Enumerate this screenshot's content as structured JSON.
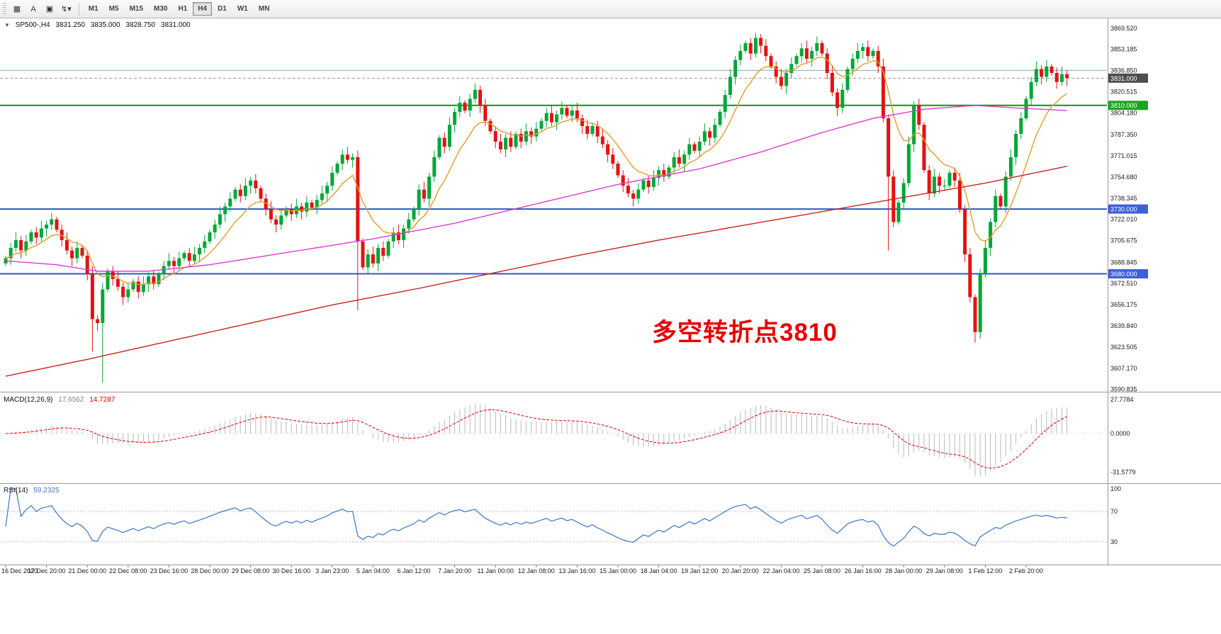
{
  "toolbar": {
    "icon_buttons": [
      {
        "name": "new-chart-icon",
        "glyph": "▦"
      },
      {
        "name": "text-label-tool-icon",
        "glyph": "A"
      },
      {
        "name": "chart-window-icon",
        "glyph": "▣"
      },
      {
        "name": "indicators-dropdown-icon",
        "glyph": "↯▾"
      }
    ],
    "timeframes": [
      {
        "label": "M1",
        "selected": false
      },
      {
        "label": "M5",
        "selected": false
      },
      {
        "label": "M15",
        "selected": false
      },
      {
        "label": "M30",
        "selected": false
      },
      {
        "label": "H1",
        "selected": false
      },
      {
        "label": "H4",
        "selected": true
      },
      {
        "label": "D1",
        "selected": false
      },
      {
        "label": "W1",
        "selected": false
      },
      {
        "label": "MN",
        "selected": false
      }
    ]
  },
  "header": {
    "one_click_glyph": "▼",
    "symbol": "SP500-,H4",
    "open": "3831.250",
    "high": "3835.000",
    "low": "3828.750",
    "close": "3831.000"
  },
  "annotation": {
    "text": "多空转折点3810",
    "color": "#e60000"
  },
  "chart_data": {
    "type": "candlestick",
    "symbol": "SP500",
    "timeframe": "H4",
    "ohlc_header": {
      "open": 3831.25,
      "high": 3835.0,
      "low": 3828.75,
      "close": 3831.0
    },
    "first_open": 3688,
    "closes": [
      3692,
      3700,
      3706,
      3698,
      3705,
      3712,
      3708,
      3715,
      3718,
      3722,
      3714,
      3706,
      3698,
      3692,
      3700,
      3694,
      3680,
      3645,
      3642,
      3668,
      3682,
      3676,
      3670,
      3662,
      3668,
      3674,
      3666,
      3672,
      3678,
      3672,
      3680,
      3686,
      3690,
      3686,
      3692,
      3696,
      3690,
      3695,
      3700,
      3705,
      3712,
      3718,
      3726,
      3732,
      3738,
      3745,
      3740,
      3748,
      3752,
      3746,
      3738,
      3730,
      3722,
      3718,
      3725,
      3730,
      3726,
      3732,
      3728,
      3735,
      3731,
      3737,
      3742,
      3748,
      3758,
      3765,
      3772,
      3768,
      3770,
      3705,
      3685,
      3695,
      3688,
      3700,
      3694,
      3705,
      3712,
      3706,
      3715,
      3722,
      3730,
      3745,
      3738,
      3755,
      3770,
      3785,
      3778,
      3795,
      3805,
      3812,
      3806,
      3815,
      3822,
      3810,
      3798,
      3790,
      3782,
      3776,
      3785,
      3778,
      3788,
      3782,
      3790,
      3786,
      3792,
      3798,
      3804,
      3797,
      3803,
      3808,
      3802,
      3806,
      3800,
      3794,
      3788,
      3794,
      3786,
      3780,
      3772,
      3765,
      3756,
      3748,
      3742,
      3738,
      3745,
      3752,
      3747,
      3754,
      3760,
      3755,
      3762,
      3770,
      3765,
      3772,
      3780,
      3775,
      3782,
      3790,
      3785,
      3795,
      3805,
      3818,
      3832,
      3845,
      3852,
      3858,
      3850,
      3862,
      3856,
      3848,
      3840,
      3832,
      3825,
      3835,
      3842,
      3848,
      3854,
      3846,
      3852,
      3858,
      3850,
      3835,
      3820,
      3808,
      3822,
      3838,
      3846,
      3852,
      3855,
      3848,
      3852,
      3840,
      3800,
      3755,
      3720,
      3735,
      3750,
      3780,
      3810,
      3795,
      3760,
      3742,
      3755,
      3748,
      3748,
      3758,
      3752,
      3730,
      3695,
      3662,
      3635,
      3680,
      3700,
      3720,
      3740,
      3732,
      3755,
      3770,
      3788,
      3800,
      3815,
      3828,
      3838,
      3832,
      3840,
      3835,
      3828,
      3834,
      3831
    ],
    "wick_overrides": {
      "17": {
        "low": 3620
      },
      "19": {
        "low": 3596
      },
      "69": {
        "low": 3652
      },
      "92": {
        "high": 3827
      },
      "147": {
        "high": 3866
      },
      "173": {
        "low": 3698
      },
      "190": {
        "low": 3627
      }
    },
    "x_labels": [
      {
        "text": "16 Dec 2020",
        "i": 0
      },
      {
        "text": "17 Dec 20:00",
        "i": 8
      },
      {
        "text": "21 Dec 00:00",
        "i": 16
      },
      {
        "text": "22 Dec 08:00",
        "i": 24
      },
      {
        "text": "23 Dec 16:00",
        "i": 32
      },
      {
        "text": "28 Dec 00:00",
        "i": 40
      },
      {
        "text": "29 Dec 08:00",
        "i": 48
      },
      {
        "text": "30 Dec 16:00",
        "i": 56
      },
      {
        "text": "3 Jan 23:00",
        "i": 64
      },
      {
        "text": "5 Jan 04:00",
        "i": 72
      },
      {
        "text": "6 Jan 12:00",
        "i": 80
      },
      {
        "text": "7 Jan 20:00",
        "i": 88
      },
      {
        "text": "11 Jan 00:00",
        "i": 96
      },
      {
        "text": "12 Jan 08:00",
        "i": 104
      },
      {
        "text": "13 Jan 16:00",
        "i": 112
      },
      {
        "text": "15 Jan 00:00",
        "i": 120
      },
      {
        "text": "18 Jan 04:00",
        "i": 128
      },
      {
        "text": "19 Jan 12:00",
        "i": 136
      },
      {
        "text": "20 Jan 20:00",
        "i": 144
      },
      {
        "text": "22 Jan 04:00",
        "i": 152
      },
      {
        "text": "25 Jan 08:00",
        "i": 160
      },
      {
        "text": "26 Jan 16:00",
        "i": 168
      },
      {
        "text": "28 Jan 00:00",
        "i": 176
      },
      {
        "text": "29 Jan 08:00",
        "i": 184
      },
      {
        "text": "1 Feb 12:00",
        "i": 192
      },
      {
        "text": "2 Feb 20:00",
        "i": 200
      }
    ],
    "price_scale": {
      "ticks": [
        "3869.520",
        "3853.185",
        "3836.850",
        "3820.515",
        "3804.180",
        "3787.350",
        "3771.015",
        "3754.680",
        "3738.345",
        "3722.010",
        "3705.675",
        "3688.845",
        "3672.510",
        "3656.175",
        "3639.840",
        "3623.505",
        "3607.170",
        "3590.835"
      ],
      "markers": [
        {
          "label": "3831.000",
          "value": 3831.0,
          "bg": "#4d4d4d"
        },
        {
          "label": "3810.000",
          "value": 3810.0,
          "bg": "#1fa31f"
        },
        {
          "label": "3730.000",
          "value": 3730.0,
          "bg": "#3e5fd7"
        },
        {
          "label": "3680.000",
          "value": 3680.0,
          "bg": "#3e5fd7"
        }
      ]
    },
    "hlines": [
      {
        "price": 3837.0,
        "color": "#85a8cc",
        "w": 1
      },
      {
        "price": 3831.0,
        "color": "#9a9a9a",
        "w": 1,
        "dash": "4 3"
      },
      {
        "price": 3810.0,
        "color": "#0a9a0a",
        "w": 2
      },
      {
        "price": 3730.0,
        "color": "#2f55cc",
        "w": 2
      },
      {
        "price": 3680.0,
        "color": "#2f55cc",
        "w": 2
      }
    ],
    "levels": {
      "turning_point": 3810,
      "support_1": 3730,
      "support_2": 3680
    },
    "moving_averages": {
      "orange_ema_period": 10,
      "magenta_waypoints": [
        [
          0,
          3690
        ],
        [
          10,
          3687
        ],
        [
          18,
          3682
        ],
        [
          28,
          3682
        ],
        [
          40,
          3687
        ],
        [
          56,
          3697
        ],
        [
          72,
          3707
        ],
        [
          88,
          3719
        ],
        [
          104,
          3734
        ],
        [
          120,
          3749
        ],
        [
          136,
          3761
        ],
        [
          148,
          3774
        ],
        [
          160,
          3789
        ],
        [
          170,
          3800
        ],
        [
          180,
          3807
        ],
        [
          190,
          3810
        ],
        [
          198,
          3808
        ],
        [
          208,
          3806
        ]
      ],
      "red_waypoints": [
        [
          0,
          3601
        ],
        [
          16,
          3614
        ],
        [
          32,
          3628
        ],
        [
          48,
          3642
        ],
        [
          64,
          3656
        ],
        [
          80,
          3668
        ],
        [
          96,
          3681
        ],
        [
          112,
          3694
        ],
        [
          128,
          3706
        ],
        [
          144,
          3717
        ],
        [
          160,
          3728
        ],
        [
          176,
          3739
        ],
        [
          192,
          3750
        ],
        [
          208,
          3763
        ]
      ]
    },
    "indicators": {
      "macd": {
        "label": "MACD(12,26,9)",
        "value_main": "17.6562",
        "value_signal": "14.7287",
        "fast": 12,
        "slow": 26,
        "signal": 9,
        "axis": [
          {
            "label": "27.7784",
            "v": 27.7784
          },
          {
            "label": "0.0000",
            "v": 0
          },
          {
            "label": "-31.5779",
            "v": -31.5779
          }
        ]
      },
      "rsi": {
        "label": "RSI(14)",
        "value": "59.2325",
        "period": 14,
        "levels": [
          100,
          70,
          30
        ],
        "dashed_levels": [
          70,
          30
        ]
      }
    },
    "colors": {
      "up": "#00a736",
      "down": "#e31212",
      "ma_fast": "#dd9f2a",
      "ma_mid": "#e03ad8",
      "ma_slow": "#cc2222",
      "macd_hist": "#b9b9b9",
      "macd_signal": "#dd0000",
      "rsi": "#3a76c8",
      "axis_text": "#1a1a1a",
      "panel_border": "#9a9a9a"
    }
  }
}
